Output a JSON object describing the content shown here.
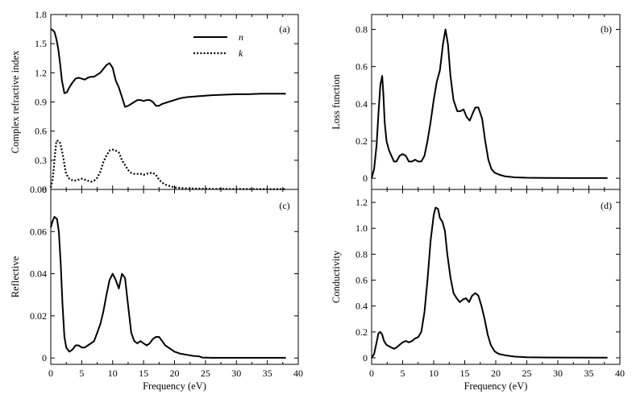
{
  "chart_data": [
    {
      "panel": "(a)",
      "type": "line",
      "ylabel": "Complex refractive index",
      "xlabel": "",
      "xlim": [
        0,
        40
      ],
      "ylim": [
        0,
        1.8
      ],
      "xticks": [
        "0",
        "5",
        "10",
        "15",
        "20",
        "25",
        "30",
        "35",
        "40"
      ],
      "yticks": [
        {
          "v": 0,
          "t": "0"
        },
        {
          "v": 0.3,
          "t": "0.3"
        },
        {
          "v": 0.6,
          "t": "0.6"
        },
        {
          "v": 0.9,
          "t": "0.9"
        },
        {
          "v": 1.2,
          "t": "1.2"
        },
        {
          "v": 1.5,
          "t": "1.5"
        },
        {
          "v": 1.8,
          "t": "1.8"
        }
      ],
      "legend": "top-right",
      "series": [
        {
          "name": "n",
          "style": "solid",
          "x": [
            0,
            0.3,
            0.6,
            0.9,
            1.2,
            1.5,
            1.8,
            2.2,
            2.6,
            3,
            3.5,
            4,
            4.5,
            5,
            5.5,
            6,
            6.5,
            7,
            7.5,
            8,
            8.5,
            9,
            9.5,
            10,
            10.5,
            11,
            11.5,
            12,
            12.5,
            13,
            13.5,
            14,
            14.5,
            15,
            15.5,
            16,
            16.5,
            17,
            17.5,
            18,
            19,
            20,
            21,
            22,
            24,
            26,
            28,
            30,
            32,
            34,
            36,
            38
          ],
          "y": [
            1.65,
            1.64,
            1.62,
            1.55,
            1.45,
            1.3,
            1.12,
            0.99,
            1.0,
            1.05,
            1.1,
            1.14,
            1.15,
            1.14,
            1.13,
            1.15,
            1.16,
            1.16,
            1.18,
            1.2,
            1.24,
            1.28,
            1.3,
            1.25,
            1.12,
            1.05,
            0.95,
            0.85,
            0.86,
            0.88,
            0.9,
            0.92,
            0.92,
            0.91,
            0.92,
            0.92,
            0.9,
            0.86,
            0.86,
            0.88,
            0.9,
            0.92,
            0.94,
            0.95,
            0.96,
            0.97,
            0.975,
            0.98,
            0.98,
            0.985,
            0.985,
            0.985
          ]
        },
        {
          "name": "k",
          "style": "dotted",
          "x": [
            0,
            0.3,
            0.6,
            0.9,
            1.2,
            1.5,
            1.8,
            2.1,
            2.4,
            2.8,
            3.2,
            3.8,
            4.5,
            5,
            5.5,
            6,
            6.5,
            7,
            7.5,
            8,
            8.5,
            9,
            9.5,
            10,
            10.5,
            11,
            11.5,
            12,
            12.5,
            13,
            13.5,
            14,
            14.5,
            15,
            15.5,
            16,
            16.5,
            17,
            17.5,
            18,
            18.5,
            19,
            19.5,
            20,
            21,
            22,
            24,
            26,
            28,
            30,
            32,
            34,
            36,
            38
          ],
          "y": [
            0.02,
            0.1,
            0.3,
            0.5,
            0.5,
            0.48,
            0.4,
            0.3,
            0.18,
            0.12,
            0.1,
            0.09,
            0.1,
            0.11,
            0.1,
            0.09,
            0.08,
            0.09,
            0.12,
            0.18,
            0.28,
            0.35,
            0.4,
            0.41,
            0.4,
            0.38,
            0.3,
            0.25,
            0.2,
            0.17,
            0.16,
            0.16,
            0.16,
            0.15,
            0.16,
            0.17,
            0.17,
            0.15,
            0.1,
            0.07,
            0.05,
            0.04,
            0.03,
            0.02,
            0.015,
            0.01,
            0.008,
            0.006,
            0.005,
            0.004,
            0.004,
            0.003,
            0.003,
            0.003
          ]
        }
      ]
    },
    {
      "panel": "(b)",
      "type": "line",
      "ylabel": "Loss function",
      "xlabel": "",
      "xlim": [
        0,
        40
      ],
      "ylim": [
        -0.06,
        0.88
      ],
      "xticks": [],
      "yticks": [
        {
          "v": 0,
          "t": "0"
        },
        {
          "v": 0.2,
          "t": "0.2"
        },
        {
          "v": 0.4,
          "t": "0.4"
        },
        {
          "v": 0.6,
          "t": "0.6"
        },
        {
          "v": 0.8,
          "t": "0.8"
        }
      ],
      "series": [
        {
          "name": "",
          "style": "solid",
          "x": [
            0,
            0.4,
            0.8,
            1.1,
            1.4,
            1.7,
            1.9,
            2.1,
            2.4,
            2.8,
            3.2,
            3.6,
            4,
            4.5,
            5,
            5.5,
            6,
            6.5,
            7,
            7.5,
            8,
            8.5,
            9,
            9.5,
            10,
            10.5,
            11,
            11.5,
            11.9,
            12.3,
            12.7,
            13.2,
            13.8,
            14.3,
            14.8,
            15.3,
            15.8,
            16.3,
            16.7,
            17.2,
            17.8,
            18.3,
            18.8,
            19.3,
            19.8,
            20.5,
            21.5,
            23,
            25,
            28,
            32,
            38
          ],
          "y": [
            0.0,
            0.05,
            0.18,
            0.35,
            0.5,
            0.55,
            0.45,
            0.3,
            0.2,
            0.15,
            0.12,
            0.09,
            0.09,
            0.12,
            0.13,
            0.12,
            0.09,
            0.09,
            0.1,
            0.09,
            0.09,
            0.12,
            0.2,
            0.3,
            0.42,
            0.52,
            0.58,
            0.72,
            0.8,
            0.72,
            0.55,
            0.42,
            0.36,
            0.36,
            0.37,
            0.33,
            0.31,
            0.35,
            0.38,
            0.38,
            0.32,
            0.2,
            0.1,
            0.05,
            0.03,
            0.02,
            0.01,
            0.005,
            0.003,
            0.002,
            0.001,
            0.001
          ]
        }
      ]
    },
    {
      "panel": "(c)",
      "type": "line",
      "ylabel": "Reflective",
      "xlabel": "Frequency (eV)",
      "xlim": [
        0,
        40
      ],
      "ylim": [
        -0.003,
        0.08
      ],
      "xticks": [
        "0",
        "5",
        "10",
        "15",
        "20",
        "25",
        "30",
        "35",
        "40"
      ],
      "yticks": [
        {
          "v": 0,
          "t": "0"
        },
        {
          "v": 0.02,
          "t": "0.02"
        },
        {
          "v": 0.04,
          "t": "0.04"
        },
        {
          "v": 0.06,
          "t": "0.06"
        },
        {
          "v": 0.08,
          "t": "0.08"
        }
      ],
      "series": [
        {
          "name": "",
          "style": "solid",
          "x": [
            0,
            0.3,
            0.6,
            1,
            1.3,
            1.6,
            1.9,
            2.2,
            2.5,
            3,
            3.5,
            4,
            4.5,
            5,
            5.5,
            6,
            6.5,
            7,
            7.5,
            8,
            8.5,
            9,
            9.5,
            10,
            10.5,
            11,
            11.5,
            12,
            12.5,
            13,
            13.5,
            14,
            14.5,
            15,
            15.5,
            16,
            16.5,
            17,
            17.5,
            18,
            18.5,
            19,
            19.5,
            20,
            21,
            22,
            23,
            24,
            24.5,
            26,
            28,
            30,
            34,
            38
          ],
          "y": [
            0.062,
            0.065,
            0.067,
            0.066,
            0.06,
            0.045,
            0.025,
            0.01,
            0.005,
            0.003,
            0.004,
            0.006,
            0.006,
            0.005,
            0.005,
            0.006,
            0.007,
            0.008,
            0.012,
            0.016,
            0.022,
            0.03,
            0.037,
            0.04,
            0.037,
            0.033,
            0.04,
            0.038,
            0.025,
            0.012,
            0.008,
            0.007,
            0.008,
            0.007,
            0.006,
            0.007,
            0.009,
            0.01,
            0.01,
            0.008,
            0.006,
            0.005,
            0.004,
            0.003,
            0.002,
            0.0015,
            0.001,
            0.0008,
            0.0002,
            0.0001,
            0.0001,
            0.0001,
            0.0001,
            0.0001
          ]
        }
      ]
    },
    {
      "panel": "(d)",
      "type": "line",
      "ylabel": "Conductivity",
      "xlabel": "Frequency (eV)",
      "xlim": [
        0,
        40
      ],
      "ylim": [
        -0.05,
        1.3
      ],
      "xticks": [
        "0",
        "5",
        "10",
        "15",
        "20",
        "25",
        "30",
        "35",
        "40"
      ],
      "yticks": [
        {
          "v": 0,
          "t": "0"
        },
        {
          "v": 0.2,
          "t": "0.2"
        },
        {
          "v": 0.4,
          "t": "0.4"
        },
        {
          "v": 0.6,
          "t": "0.6"
        },
        {
          "v": 0.8,
          "t": "0.8"
        },
        {
          "v": 1.0,
          "t": "1.0"
        },
        {
          "v": 1.2,
          "t": "1.2"
        }
      ],
      "series": [
        {
          "name": "",
          "style": "solid",
          "x": [
            0,
            0.4,
            0.8,
            1.1,
            1.4,
            1.7,
            2,
            2.4,
            2.8,
            3.2,
            3.6,
            4,
            4.5,
            5,
            5.5,
            6,
            6.5,
            7,
            7.5,
            8,
            8.5,
            9,
            9.5,
            10,
            10.3,
            10.7,
            11,
            11.4,
            11.8,
            12.2,
            12.7,
            13.2,
            13.7,
            14.2,
            14.7,
            15.2,
            15.7,
            16.2,
            16.7,
            17.2,
            17.7,
            18.2,
            18.7,
            19.2,
            19.8,
            20.5,
            21.5,
            23,
            25,
            28,
            32,
            38
          ],
          "y": [
            0,
            0.03,
            0.12,
            0.19,
            0.2,
            0.18,
            0.13,
            0.1,
            0.09,
            0.08,
            0.07,
            0.08,
            0.1,
            0.12,
            0.13,
            0.12,
            0.13,
            0.15,
            0.16,
            0.2,
            0.35,
            0.6,
            0.9,
            1.1,
            1.16,
            1.15,
            1.08,
            1.05,
            0.98,
            0.8,
            0.62,
            0.5,
            0.46,
            0.43,
            0.45,
            0.46,
            0.43,
            0.48,
            0.5,
            0.48,
            0.4,
            0.3,
            0.18,
            0.1,
            0.05,
            0.03,
            0.02,
            0.01,
            0.005,
            0.003,
            0.002,
            0.001
          ]
        }
      ]
    }
  ]
}
